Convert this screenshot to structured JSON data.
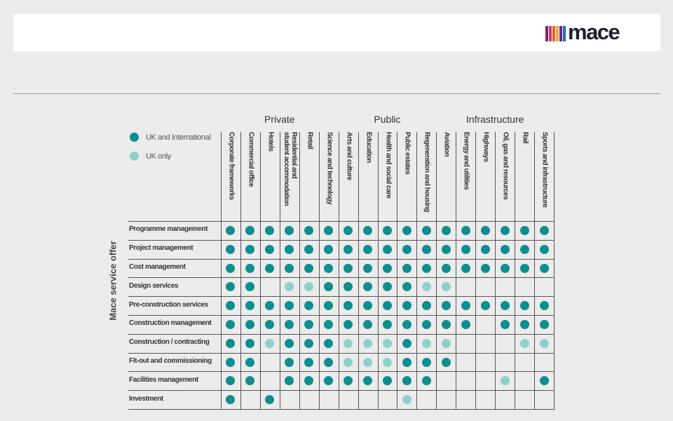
{
  "brand": {
    "name": "mace",
    "bar_colors": [
      "#8a1e5a",
      "#c43a7e",
      "#e5622d",
      "#f0a43a",
      "#5a2e8a",
      "#2a6ab0"
    ]
  },
  "groups": [
    {
      "label": "Private",
      "span": [
        0,
        5
      ]
    },
    {
      "label": "Public",
      "span": [
        6,
        10
      ]
    },
    {
      "label": "Infrastructure",
      "span": [
        11,
        16
      ]
    }
  ],
  "legend": {
    "uk_international": {
      "label": "UK and International",
      "color": "#0e8e8e"
    },
    "uk_only": {
      "label": "UK only",
      "color": "#8fd1c9"
    }
  },
  "side_label": "Mace service offer",
  "columns": [
    "Corporate frameworks",
    "Commercial office",
    "Hotels",
    "Residential and\nstudent accommodation",
    "Retail",
    "Science and technology",
    "Arts and culture",
    "Education",
    "Health and social care",
    "Public estates",
    "Regeneration and housing",
    "Aviation",
    "Energy and utilities",
    "Highways",
    "Oil, gas and resources",
    "Rail",
    "Sports and infrastructure"
  ],
  "rows": [
    {
      "label": "Programme management",
      "cells": [
        "I",
        "I",
        "I",
        "I",
        "I",
        "I",
        "I",
        "I",
        "I",
        "I",
        "I",
        "I",
        "I",
        "I",
        "I",
        "I",
        "I"
      ]
    },
    {
      "label": "Project management",
      "cells": [
        "I",
        "I",
        "I",
        "I",
        "I",
        "I",
        "I",
        "I",
        "I",
        "I",
        "I",
        "I",
        "I",
        "I",
        "I",
        "I",
        "I"
      ]
    },
    {
      "label": "Cost management",
      "cells": [
        "I",
        "I",
        "I",
        "I",
        "I",
        "I",
        "I",
        "I",
        "I",
        "I",
        "I",
        "I",
        "I",
        "I",
        "I",
        "I",
        "I"
      ]
    },
    {
      "label": "Design services",
      "cells": [
        "I",
        "I",
        "",
        "U",
        "U",
        "I",
        "I",
        "I",
        "I",
        "I",
        "U",
        "U",
        "",
        "",
        "",
        "",
        ""
      ]
    },
    {
      "label": "Pre-construction services",
      "cells": [
        "I",
        "I",
        "I",
        "I",
        "I",
        "I",
        "I",
        "I",
        "I",
        "I",
        "I",
        "I",
        "I",
        "I",
        "I",
        "I",
        "I"
      ]
    },
    {
      "label": "Construction management",
      "cells": [
        "I",
        "I",
        "I",
        "I",
        "I",
        "I",
        "I",
        "I",
        "I",
        "I",
        "I",
        "I",
        "I",
        "",
        "I",
        "I",
        "I"
      ]
    },
    {
      "label": "Construction / contracting",
      "cells": [
        "I",
        "I",
        "U",
        "I",
        "I",
        "I",
        "U",
        "U",
        "U",
        "I",
        "U",
        "U",
        "",
        "",
        "",
        "U",
        "U"
      ]
    },
    {
      "label": "Fit-out and commissioning",
      "cells": [
        "I",
        "I",
        "",
        "I",
        "I",
        "I",
        "U",
        "U",
        "U",
        "I",
        "I",
        "I",
        "",
        "",
        "",
        "",
        ""
      ]
    },
    {
      "label": "Facilities management",
      "cells": [
        "I",
        "I",
        "",
        "I",
        "I",
        "I",
        "I",
        "I",
        "I",
        "I",
        "I",
        "",
        "",
        "",
        "U",
        "",
        "I"
      ]
    },
    {
      "label": "Investment",
      "cells": [
        "I",
        "",
        "I",
        "",
        "",
        "",
        "",
        "",
        "",
        "U",
        "",
        "",
        "",
        "",
        "",
        "",
        ""
      ]
    }
  ]
}
